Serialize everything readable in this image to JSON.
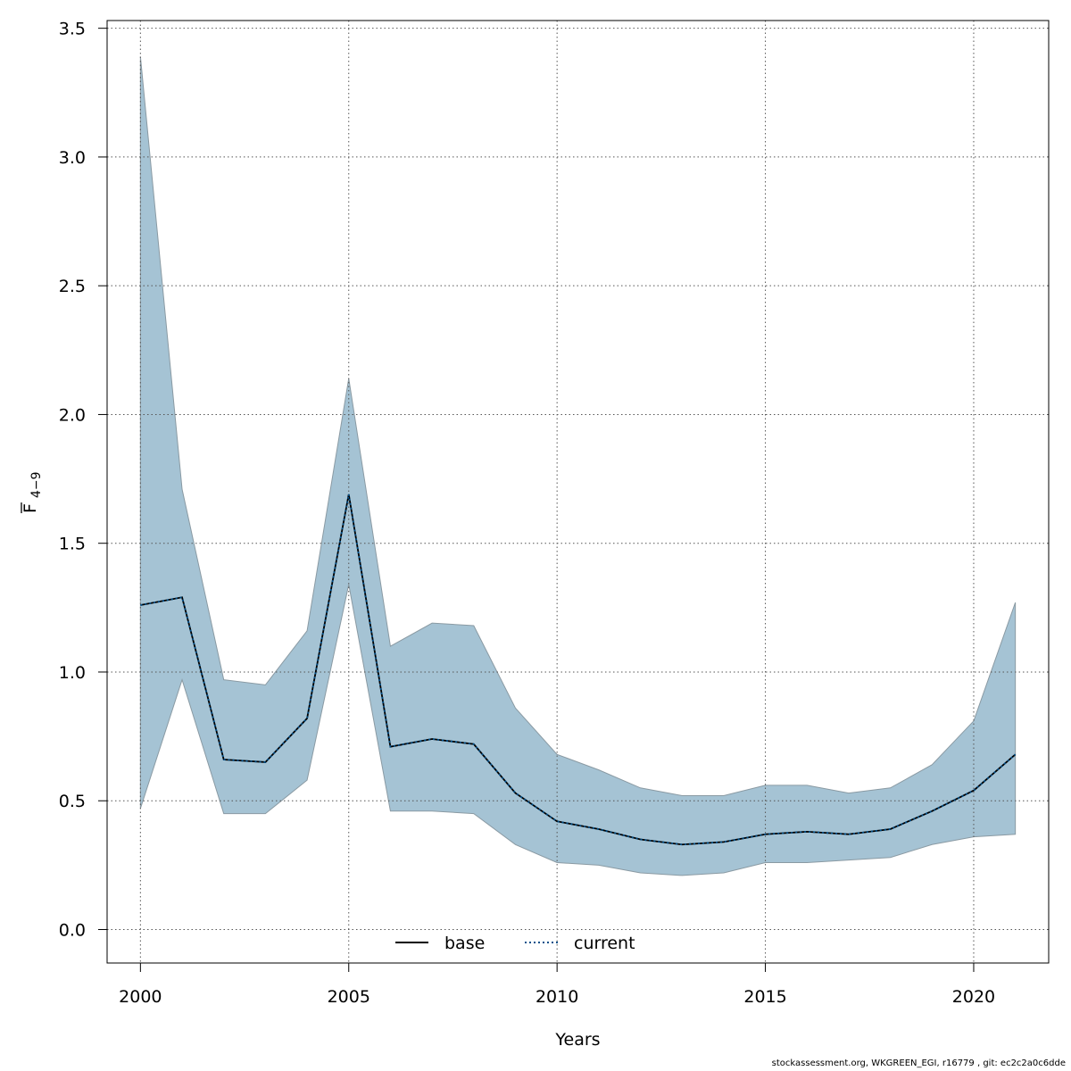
{
  "chart_data": {
    "type": "line",
    "title": "",
    "xlabel": "Years",
    "ylabel_main": "F",
    "ylabel_sub": "4−9",
    "xlim": [
      1999.2,
      2021.8
    ],
    "ylim": [
      -0.13,
      3.53
    ],
    "x_ticks": [
      2000,
      2005,
      2010,
      2015,
      2020
    ],
    "y_ticks": [
      0.0,
      0.5,
      1.0,
      1.5,
      2.0,
      2.5,
      3.0,
      3.5
    ],
    "y_tick_labels": [
      "0.0",
      "0.5",
      "1.0",
      "1.5",
      "2.0",
      "2.5",
      "3.0",
      "3.5"
    ],
    "grid": true,
    "legend_position": "bottom-center",
    "x": [
      2000,
      2001,
      2002,
      2003,
      2004,
      2005,
      2006,
      2007,
      2008,
      2009,
      2010,
      2011,
      2012,
      2013,
      2014,
      2015,
      2016,
      2017,
      2018,
      2019,
      2020,
      2021
    ],
    "band": {
      "upper": [
        3.39,
        1.71,
        0.97,
        0.95,
        1.16,
        2.14,
        1.1,
        1.19,
        1.18,
        0.86,
        0.68,
        0.62,
        0.55,
        0.52,
        0.52,
        0.56,
        0.56,
        0.53,
        0.55,
        0.64,
        0.81,
        1.27
      ],
      "lower": [
        0.47,
        0.97,
        0.45,
        0.45,
        0.58,
        1.34,
        0.46,
        0.46,
        0.45,
        0.33,
        0.26,
        0.25,
        0.22,
        0.21,
        0.22,
        0.26,
        0.26,
        0.27,
        0.28,
        0.33,
        0.36,
        0.37
      ]
    },
    "series": [
      {
        "name": "base",
        "style": "solid",
        "color": "#000000",
        "values": [
          1.26,
          1.29,
          0.66,
          0.65,
          0.82,
          1.69,
          0.71,
          0.74,
          0.72,
          0.53,
          0.42,
          0.39,
          0.35,
          0.33,
          0.34,
          0.37,
          0.38,
          0.37,
          0.39,
          0.46,
          0.54,
          0.68
        ]
      },
      {
        "name": "current",
        "style": "dotted",
        "color": "#00508a",
        "values": [
          1.26,
          1.29,
          0.66,
          0.65,
          0.82,
          1.69,
          0.71,
          0.74,
          0.72,
          0.53,
          0.42,
          0.39,
          0.35,
          0.33,
          0.34,
          0.37,
          0.38,
          0.37,
          0.39,
          0.46,
          0.54,
          0.68
        ]
      }
    ],
    "colors": {
      "band_fill": "#a5c3d4",
      "band_edge": "#8a9aa3",
      "grid": "#555555"
    }
  },
  "footer_text": "stockassessment.org, WKGREEN_EGI, r16779 , git: ec2c2a0c6dde"
}
